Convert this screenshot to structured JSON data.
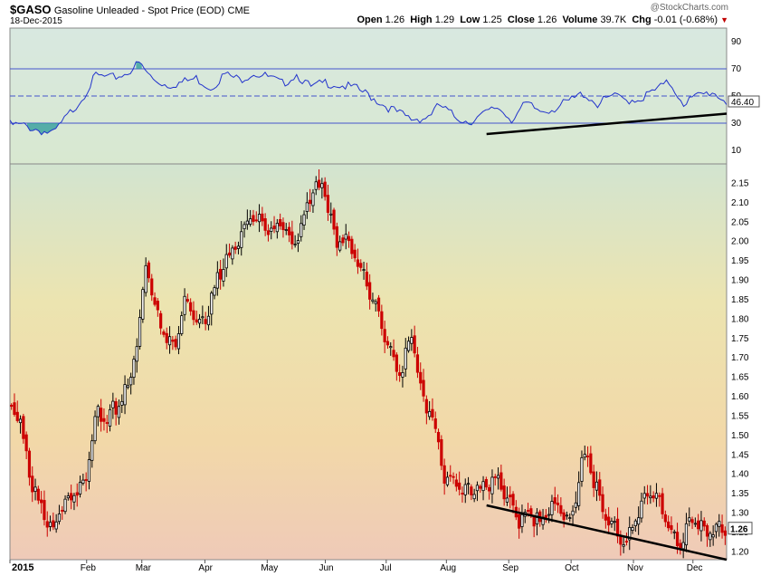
{
  "header": {
    "symbol": "$GASO",
    "description": "Gasoline Unleaded - Spot Price (EOD)",
    "exchange": "CME",
    "date": "18-Dec-2015",
    "watermark": "@StockCharts.com",
    "open_label": "Open",
    "open": "1.26",
    "high_label": "High",
    "high": "1.29",
    "low_label": "Low",
    "low": "1.25",
    "close_label": "Close",
    "close": "1.26",
    "volume_label": "Volume",
    "volume": "39.7K",
    "chg_label": "Chg",
    "chg": "-0.01 (-0.68%)"
  },
  "colors": {
    "up": "#000000",
    "down": "#cc0000",
    "rsi_line": "#2233cc",
    "rsi_fill": "#2a9a9a",
    "grid": "#4455cc"
  },
  "chart_data": [
    {
      "type": "line",
      "indicator": "RSI",
      "ylim": [
        0,
        100
      ],
      "yticks": [
        10,
        30,
        50,
        70,
        90
      ],
      "levels": [
        30,
        50,
        70
      ],
      "last_value_label": "46.40",
      "x": [
        0,
        0.02,
        0.04,
        0.06,
        0.08,
        0.1,
        0.12,
        0.14,
        0.16,
        0.18,
        0.2,
        0.22,
        0.24,
        0.26,
        0.28,
        0.3,
        0.32,
        0.34,
        0.36,
        0.38,
        0.4,
        0.42,
        0.44,
        0.46,
        0.48,
        0.5,
        0.52,
        0.54,
        0.56,
        0.58,
        0.6,
        0.62,
        0.64,
        0.66,
        0.68,
        0.7,
        0.72,
        0.74,
        0.76,
        0.78,
        0.8,
        0.82,
        0.84,
        0.86,
        0.88,
        0.9,
        0.92,
        0.94,
        0.96,
        0.98,
        1.0
      ],
      "values": [
        29,
        28,
        25,
        22,
        35,
        48,
        65,
        63,
        66,
        74,
        62,
        58,
        60,
        63,
        56,
        66,
        62,
        67,
        64,
        59,
        66,
        56,
        60,
        58,
        56,
        51,
        44,
        38,
        33,
        34,
        43,
        35,
        31,
        36,
        42,
        33,
        44,
        39,
        41,
        46,
        52,
        44,
        50,
        47,
        48,
        54,
        60,
        45,
        50,
        53,
        46
      ],
      "trendline": {
        "from_x": 0.665,
        "from_y": 22,
        "to_x": 1.0,
        "to_y": 37
      }
    },
    {
      "type": "candlestick",
      "title": "Gasoline Unleaded - Spot Price (EOD)",
      "ylim": [
        1.18,
        2.2
      ],
      "yticks": [
        1.2,
        1.25,
        1.3,
        1.35,
        1.4,
        1.45,
        1.5,
        1.55,
        1.6,
        1.65,
        1.7,
        1.75,
        1.8,
        1.85,
        1.9,
        1.95,
        2.0,
        2.05,
        2.1,
        2.15
      ],
      "last_value_label": "1.26",
      "x_labels": [
        "2015",
        "Feb",
        "Mar",
        "Apr",
        "May",
        "Jun",
        "Jul",
        "Aug",
        "Sep",
        "Oct",
        "Nov",
        "Dec"
      ],
      "x_label_positions": [
        0,
        0.107,
        0.184,
        0.272,
        0.359,
        0.44,
        0.525,
        0.609,
        0.696,
        0.783,
        0.87,
        0.953
      ],
      "close_path_x": [
        0,
        0.015,
        0.03,
        0.045,
        0.06,
        0.075,
        0.09,
        0.105,
        0.12,
        0.135,
        0.15,
        0.165,
        0.18,
        0.19,
        0.2,
        0.215,
        0.23,
        0.245,
        0.26,
        0.275,
        0.29,
        0.305,
        0.32,
        0.335,
        0.35,
        0.365,
        0.38,
        0.395,
        0.41,
        0.425,
        0.44,
        0.455,
        0.47,
        0.485,
        0.5,
        0.515,
        0.53,
        0.545,
        0.56,
        0.575,
        0.59,
        0.605,
        0.62,
        0.635,
        0.65,
        0.665,
        0.68,
        0.695,
        0.71,
        0.725,
        0.74,
        0.755,
        0.77,
        0.785,
        0.8,
        0.815,
        0.83,
        0.845,
        0.86,
        0.875,
        0.89,
        0.905,
        0.92,
        0.935,
        0.95,
        0.965,
        0.98,
        1.0
      ],
      "close_path_y": [
        1.58,
        1.52,
        1.38,
        1.3,
        1.26,
        1.33,
        1.36,
        1.39,
        1.56,
        1.55,
        1.58,
        1.63,
        1.78,
        1.95,
        1.85,
        1.76,
        1.72,
        1.86,
        1.79,
        1.8,
        1.91,
        1.96,
        2.0,
        2.06,
        2.05,
        2.02,
        2.05,
        1.98,
        2.06,
        2.15,
        2.12,
        2.0,
        2.0,
        1.95,
        1.88,
        1.81,
        1.72,
        1.66,
        1.77,
        1.6,
        1.55,
        1.4,
        1.38,
        1.36,
        1.35,
        1.37,
        1.38,
        1.33,
        1.28,
        1.3,
        1.27,
        1.32,
        1.3,
        1.28,
        1.46,
        1.38,
        1.3,
        1.26,
        1.22,
        1.3,
        1.36,
        1.33,
        1.26,
        1.22,
        1.29,
        1.26,
        1.26,
        1.26
      ],
      "trendline": {
        "from_x": 0.665,
        "from_y": 1.32,
        "to_x": 1.0,
        "to_y": 1.18
      }
    }
  ]
}
